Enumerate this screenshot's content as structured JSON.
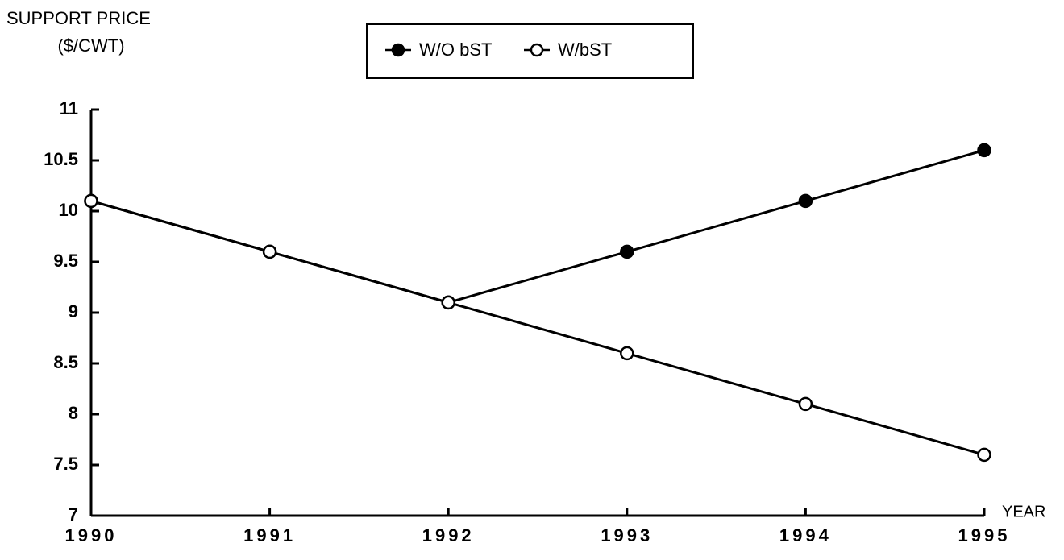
{
  "chart_data": {
    "type": "line",
    "y_label": [
      "SUPPORT PRICE",
      "($/CWT)"
    ],
    "x_label": "YEAR",
    "x": [
      1990,
      1991,
      1992,
      1993,
      1994,
      1995
    ],
    "series": [
      {
        "name": "W/O bST",
        "color": "#000000",
        "marker": "filled",
        "values": [
          10.1,
          9.6,
          9.1,
          9.6,
          10.1,
          10.6
        ]
      },
      {
        "name": "W/bST",
        "color": "#000000",
        "marker": "open",
        "values": [
          10.1,
          9.6,
          9.1,
          8.6,
          8.1,
          7.6
        ]
      }
    ],
    "xlim": [
      1990,
      1995
    ],
    "xticks": [
      1990,
      1991,
      1992,
      1993,
      1994,
      1995
    ],
    "ylim": [
      7,
      11
    ],
    "yticks": [
      7,
      7.5,
      8,
      8.5,
      9,
      9.5,
      10,
      10.5,
      11
    ],
    "grid": false,
    "legend": "top"
  }
}
